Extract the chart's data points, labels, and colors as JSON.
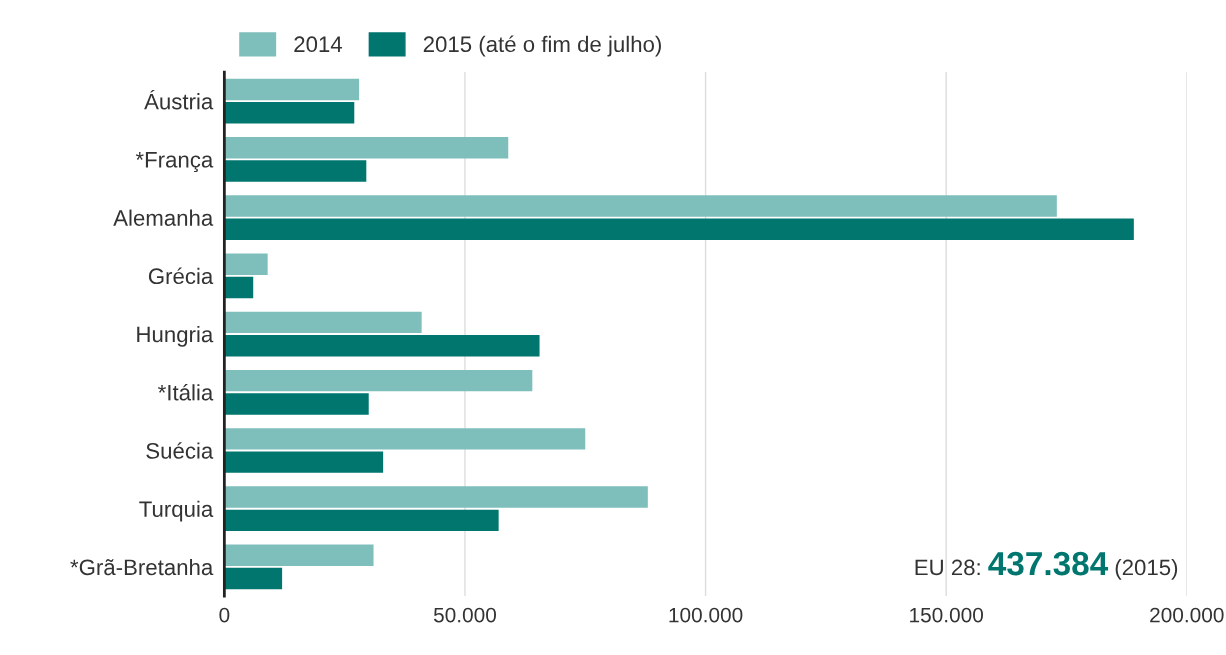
{
  "chart_data": {
    "type": "bar",
    "orientation": "horizontal",
    "categories": [
      "Áustria",
      "*França",
      "Alemanha",
      "Grécia",
      "Hungria",
      "*Itália",
      "Suécia",
      "Turquia",
      "*Grã-Bretanha"
    ],
    "series": [
      {
        "name": "2014",
        "color": "#7fbfbb",
        "values": [
          28000,
          59000,
          173000,
          9000,
          41000,
          64000,
          75000,
          88000,
          31000
        ]
      },
      {
        "name": "2015 (até o fim de julho)",
        "color": "#00766f",
        "values": [
          27000,
          29500,
          189000,
          6000,
          65500,
          30000,
          33000,
          57000,
          12000
        ]
      }
    ],
    "xlim": [
      0,
      200000
    ],
    "xticks": [
      0,
      {
        "value": 50000,
        "label": "50.000"
      },
      {
        "value": 100000,
        "label": "100.000"
      },
      {
        "value": 150000,
        "label": "150.000"
      },
      {
        "value": 200000,
        "label": "200.000"
      }
    ],
    "grid": "x",
    "legend": "top left",
    "annotations": [
      "EU 28:",
      "437.384",
      "(2015)"
    ]
  }
}
